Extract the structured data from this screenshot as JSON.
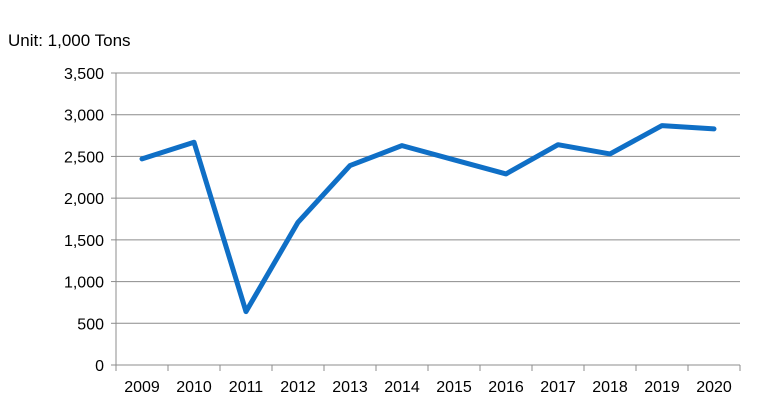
{
  "chart_data": {
    "type": "line",
    "unit_label": "Unit: 1,000 Tons",
    "categories": [
      "2009",
      "2010",
      "2011",
      "2012",
      "2013",
      "2014",
      "2015",
      "2016",
      "2017",
      "2018",
      "2019",
      "2020"
    ],
    "series": [
      {
        "values": [
          2470,
          2670,
          640,
          1710,
          2390,
          2630,
          2460,
          2290,
          2640,
          2530,
          2870,
          2830
        ],
        "color": "#0f6fc6"
      }
    ],
    "ylim": [
      0,
      3500
    ],
    "yticks": [
      0,
      500,
      1000,
      1500,
      2000,
      2500,
      3000,
      3500
    ],
    "ytick_labels": [
      "0",
      "500",
      "1,000",
      "1,500",
      "2,000",
      "2,500",
      "3,000",
      "3,500"
    ],
    "grid": true,
    "legend": "none"
  }
}
